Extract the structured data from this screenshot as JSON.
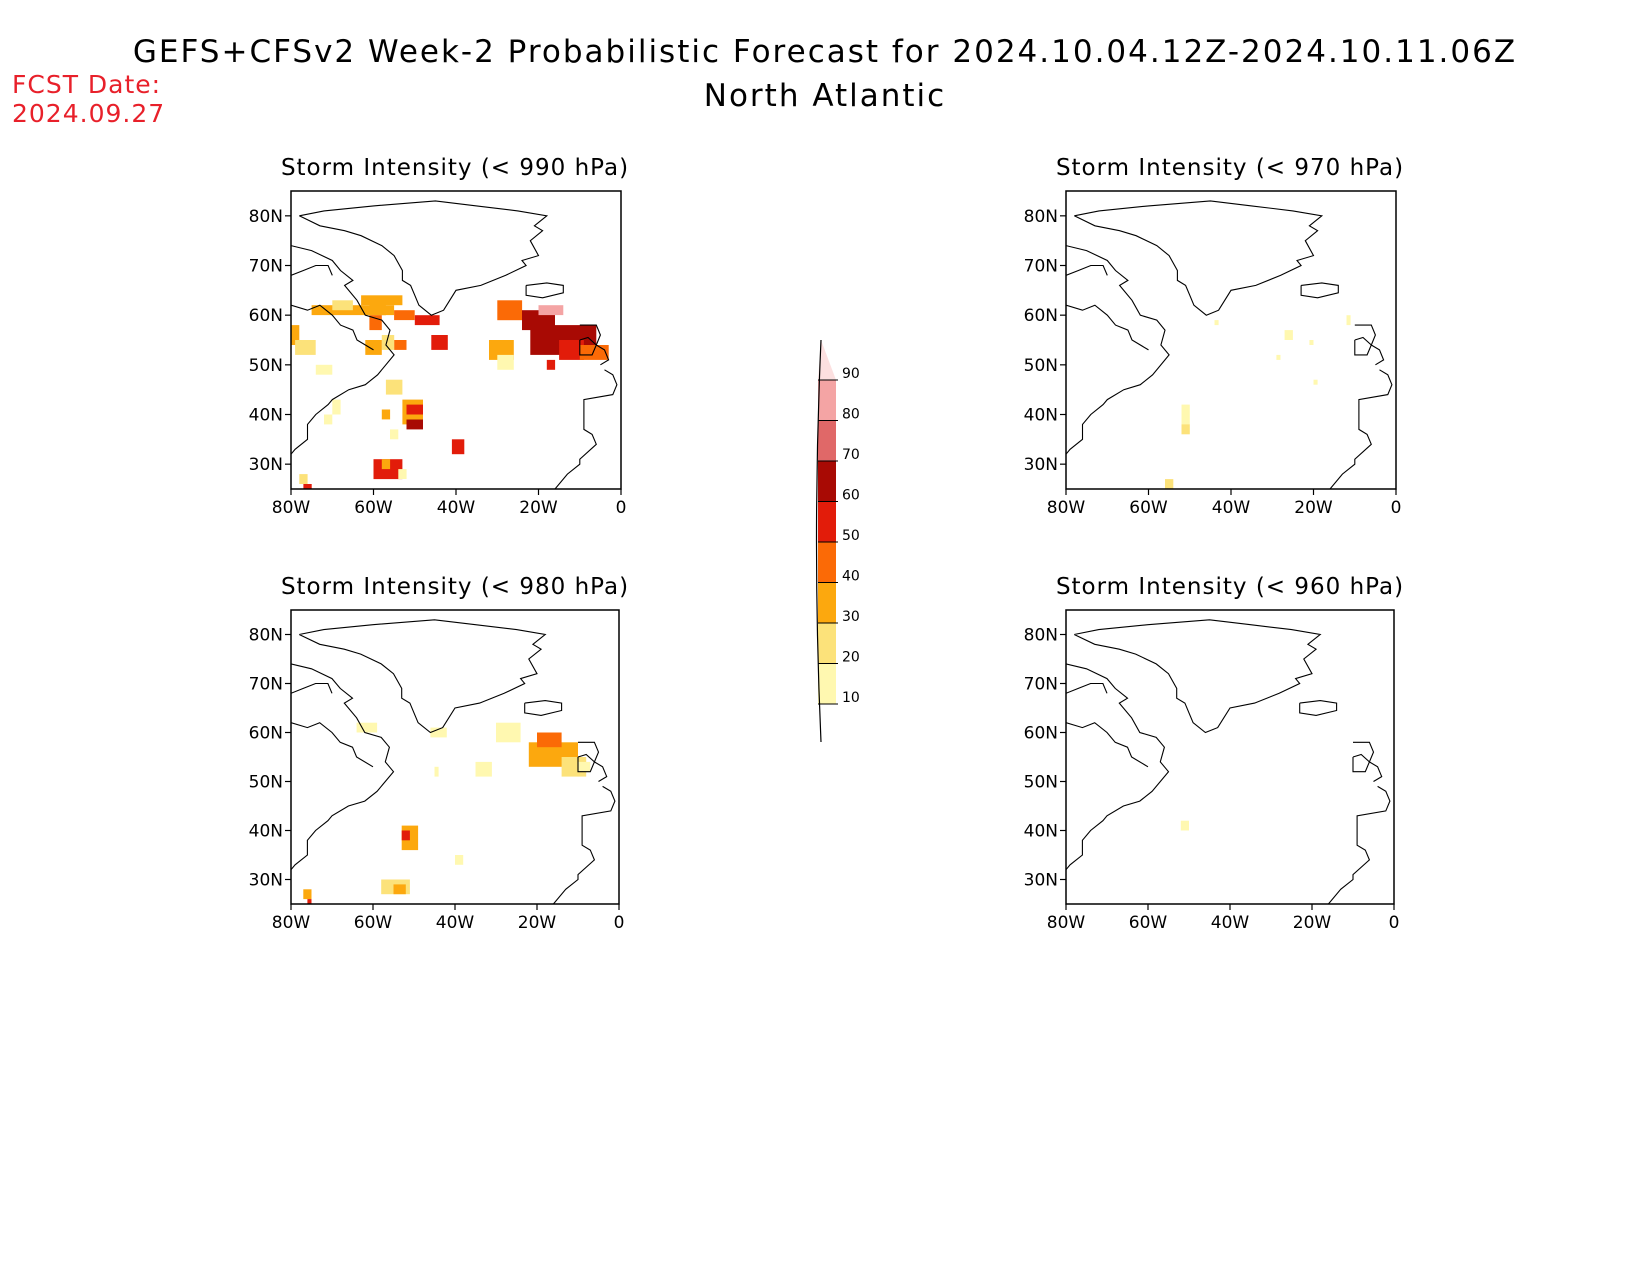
{
  "header": {
    "title": "GEFS+CFSv2 Week-2 Probabilistic Forecast for 2024.10.04.12Z-2024.10.11.06Z",
    "subtitle": "North Atlantic",
    "fcst_label": "FCST Date:",
    "fcst_date": "2024.09.27"
  },
  "colors": {
    "10": "#fff8b0",
    "20": "#fce27a",
    "30": "#fca80e",
    "40": "#fb6a06",
    "50": "#e21c0a",
    "60": "#a80a04",
    "70": "#e06868",
    "80": "#f4a4a4",
    "90": "#fce0e0"
  },
  "legend": {
    "ticks": [
      "10",
      "20",
      "30",
      "40",
      "50",
      "60",
      "70",
      "80",
      "90"
    ]
  },
  "axes": {
    "lat_ticks": [
      "80N",
      "70N",
      "60N",
      "50N",
      "40N",
      "30N"
    ],
    "lon_ticks": [
      "80W",
      "60W",
      "40W",
      "20W",
      "0"
    ]
  },
  "panels": [
    {
      "id": "p990",
      "title": "Storm Intensity (< 990 hPa)",
      "cells": [
        [
          75,
          62,
          20,
          2,
          30
        ],
        [
          70,
          63,
          5,
          2,
          20
        ],
        [
          63,
          64,
          10,
          2,
          30
        ],
        [
          61,
          63,
          4,
          3,
          30
        ],
        [
          61,
          60,
          3,
          3,
          40
        ],
        [
          55,
          61,
          5,
          2,
          40
        ],
        [
          50,
          60,
          6,
          2,
          50
        ],
        [
          46,
          56,
          4,
          3,
          50
        ],
        [
          55,
          55,
          3,
          2,
          40
        ],
        [
          58,
          56,
          3,
          3,
          20
        ],
        [
          62,
          55,
          4,
          3,
          30
        ],
        [
          80,
          58,
          2,
          4,
          30
        ],
        [
          79,
          55,
          5,
          3,
          20
        ],
        [
          74,
          50,
          4,
          2,
          10
        ],
        [
          57,
          47,
          4,
          3,
          20
        ],
        [
          53,
          43,
          5,
          5,
          30
        ],
        [
          52,
          42,
          4,
          2,
          50
        ],
        [
          52,
          39,
          4,
          2,
          60
        ],
        [
          58,
          41,
          2,
          2,
          30
        ],
        [
          56,
          37,
          2,
          2,
          10
        ],
        [
          72,
          40,
          2,
          2,
          10
        ],
        [
          60,
          31,
          7,
          4,
          50
        ],
        [
          58,
          31,
          2,
          2,
          30
        ],
        [
          54,
          29,
          2,
          2,
          10
        ],
        [
          41,
          35,
          3,
          3,
          50
        ],
        [
          32,
          55,
          6,
          4,
          30
        ],
        [
          30,
          52,
          4,
          3,
          10
        ],
        [
          30,
          63,
          6,
          4,
          40
        ],
        [
          24,
          61,
          8,
          4,
          60
        ],
        [
          22,
          58,
          16,
          6,
          60
        ],
        [
          20,
          62,
          6,
          2,
          80
        ],
        [
          15,
          55,
          6,
          4,
          50
        ],
        [
          10,
          54,
          7,
          3,
          40
        ],
        [
          18,
          51,
          2,
          2,
          50
        ],
        [
          70,
          43,
          2,
          3,
          10
        ],
        [
          78,
          28,
          2,
          2,
          20
        ],
        [
          77,
          26,
          2,
          1,
          50
        ]
      ]
    },
    {
      "id": "p970",
      "title": "Storm Intensity (< 970 hPa)",
      "cells": [
        [
          52,
          42,
          2,
          4,
          10
        ],
        [
          52,
          38,
          2,
          2,
          20
        ],
        [
          56,
          27,
          2,
          2,
          20
        ],
        [
          27,
          57,
          2,
          2,
          10
        ],
        [
          21,
          55,
          1,
          1,
          10
        ],
        [
          29,
          52,
          1,
          1,
          10
        ],
        [
          12,
          60,
          1,
          2,
          10
        ],
        [
          20,
          47,
          1,
          1,
          10
        ],
        [
          44,
          59,
          1,
          1,
          10
        ]
      ]
    },
    {
      "id": "p980",
      "title": "Storm Intensity (< 980 hPa)",
      "cells": [
        [
          64,
          62,
          5,
          2,
          10
        ],
        [
          46,
          61,
          4,
          2,
          10
        ],
        [
          30,
          62,
          6,
          4,
          10
        ],
        [
          22,
          58,
          12,
          5,
          30
        ],
        [
          20,
          60,
          6,
          3,
          40
        ],
        [
          14,
          55,
          6,
          4,
          20
        ],
        [
          10,
          54,
          3,
          2,
          10
        ],
        [
          35,
          54,
          4,
          3,
          10
        ],
        [
          53,
          41,
          4,
          5,
          30
        ],
        [
          53,
          40,
          2,
          2,
          50
        ],
        [
          58,
          30,
          7,
          3,
          20
        ],
        [
          55,
          29,
          3,
          2,
          30
        ],
        [
          40,
          35,
          2,
          2,
          10
        ],
        [
          77,
          28,
          2,
          2,
          30
        ],
        [
          76,
          26,
          1,
          1,
          50
        ],
        [
          45,
          53,
          1,
          2,
          10
        ]
      ]
    },
    {
      "id": "p960",
      "title": "Storm Intensity (< 960 hPa)",
      "cells": [
        [
          52,
          42,
          2,
          2,
          10
        ]
      ]
    }
  ]
}
